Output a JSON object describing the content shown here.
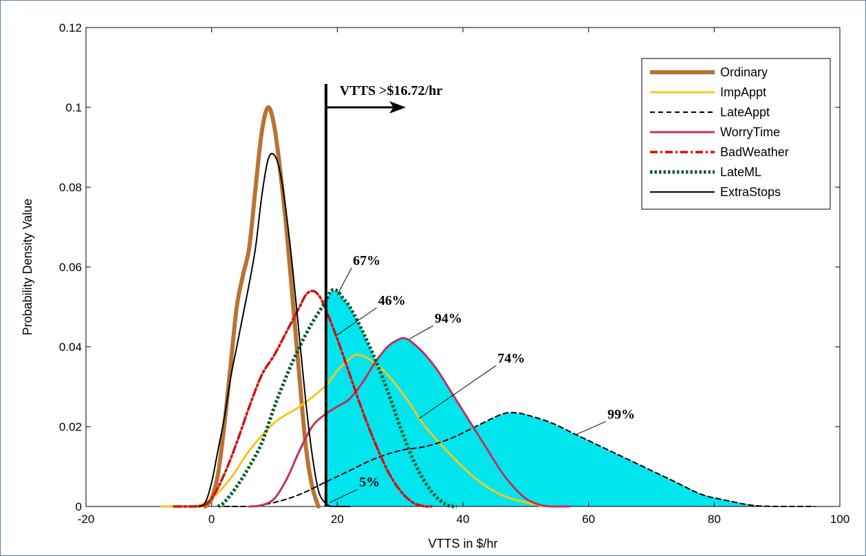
{
  "chart_data": {
    "type": "line",
    "title": "",
    "xlabel": "VTTS in $/hr",
    "ylabel": "Probability Density Value",
    "xlim": [
      -20,
      100
    ],
    "ylim": [
      0,
      0.12
    ],
    "xticks": [
      -20,
      0,
      20,
      40,
      60,
      80,
      100
    ],
    "xtick_labels": [
      "-20",
      "0",
      "20",
      "40",
      "60",
      "80",
      "100"
    ],
    "yticks": [
      0,
      0.02,
      0.04,
      0.06,
      0.08,
      0.1,
      0.12
    ],
    "ytick_labels": [
      "0",
      "0.02",
      "0.04",
      "0.06",
      "0.08",
      "0.1",
      "0.12"
    ],
    "grid": false,
    "legend_position": "top-right",
    "threshold": {
      "x": 18.2,
      "label": "VTTS >$16.72/hr"
    },
    "series": [
      {
        "name": "Ordinary",
        "color": "#b87333",
        "style": "solid-thick",
        "x": [
          -1,
          0,
          1,
          2,
          3,
          4,
          5,
          6,
          7,
          8,
          9,
          10,
          11,
          12,
          13,
          14,
          15,
          16,
          17
        ],
        "y": [
          0,
          0.002,
          0.008,
          0.02,
          0.035,
          0.05,
          0.058,
          0.065,
          0.08,
          0.094,
          0.1,
          0.095,
          0.083,
          0.068,
          0.05,
          0.032,
          0.015,
          0.005,
          0
        ]
      },
      {
        "name": "ImpAppt",
        "color": "#f2c81c",
        "style": "solid",
        "x": [
          -8,
          -3,
          0,
          3,
          6,
          10,
          14,
          18,
          20,
          22,
          23,
          25,
          28,
          31,
          34,
          38,
          42,
          46,
          50,
          53
        ],
        "y": [
          0,
          0,
          0.002,
          0.007,
          0.014,
          0.021,
          0.025,
          0.03,
          0.034,
          0.037,
          0.038,
          0.037,
          0.033,
          0.027,
          0.02,
          0.013,
          0.007,
          0.003,
          0.001,
          0
        ]
      },
      {
        "name": "LateAppt",
        "color": "#000000",
        "style": "dashed",
        "x": [
          2,
          6,
          10,
          14,
          18,
          22,
          26,
          30,
          34,
          38,
          42,
          46,
          48,
          50,
          54,
          58,
          62,
          66,
          70,
          74,
          78,
          82,
          86,
          90,
          96
        ],
        "y": [
          0,
          0,
          0.001,
          0.003,
          0.006,
          0.009,
          0.012,
          0.014,
          0.015,
          0.017,
          0.02,
          0.023,
          0.0235,
          0.023,
          0.021,
          0.018,
          0.015,
          0.012,
          0.009,
          0.006,
          0.003,
          0.0015,
          0.0003,
          0,
          0
        ]
      },
      {
        "name": "WorryTime",
        "color": "#c0305a",
        "style": "solid",
        "x": [
          6,
          8,
          10,
          12,
          14,
          16,
          18,
          20,
          22,
          24,
          26,
          28,
          30,
          31,
          32,
          34,
          36,
          38,
          40,
          42,
          44,
          46,
          48,
          50,
          52,
          54,
          57
        ],
        "y": [
          0,
          0.0003,
          0.002,
          0.007,
          0.014,
          0.02,
          0.023,
          0.025,
          0.027,
          0.031,
          0.036,
          0.04,
          0.042,
          0.042,
          0.041,
          0.038,
          0.034,
          0.029,
          0.024,
          0.019,
          0.014,
          0.009,
          0.005,
          0.002,
          0.0005,
          0,
          0
        ]
      },
      {
        "name": "BadWeather",
        "color": "#d01010",
        "style": "dashdot",
        "x": [
          -6,
          -2,
          0,
          2,
          4,
          6,
          8,
          10,
          12,
          14,
          15,
          16,
          17,
          18,
          20,
          22,
          24,
          26,
          28,
          30,
          32,
          34,
          35
        ],
        "y": [
          0,
          0,
          0.002,
          0.008,
          0.016,
          0.025,
          0.033,
          0.038,
          0.044,
          0.05,
          0.053,
          0.054,
          0.053,
          0.05,
          0.042,
          0.033,
          0.024,
          0.016,
          0.009,
          0.004,
          0.001,
          0,
          0
        ]
      },
      {
        "name": "LateML",
        "color": "#0e5a2c",
        "style": "dotted",
        "x": [
          1,
          2,
          4,
          6,
          8,
          10,
          12,
          14,
          16,
          18,
          19,
          20,
          21,
          22,
          24,
          26,
          28,
          30,
          32,
          34,
          36,
          38,
          39
        ],
        "y": [
          0,
          0.001,
          0.005,
          0.01,
          0.016,
          0.025,
          0.033,
          0.04,
          0.046,
          0.051,
          0.054,
          0.054,
          0.052,
          0.05,
          0.044,
          0.037,
          0.029,
          0.02,
          0.012,
          0.006,
          0.002,
          0,
          0
        ]
      },
      {
        "name": "ExtraStops",
        "color": "#000000",
        "style": "solid-thin",
        "x": [
          -2,
          -1,
          0,
          1,
          2,
          3,
          4,
          5,
          6,
          7,
          8,
          9,
          10,
          11,
          12,
          13,
          14,
          15,
          16,
          17,
          18,
          19,
          20,
          22
        ],
        "y": [
          0,
          0.001,
          0.006,
          0.014,
          0.022,
          0.032,
          0.04,
          0.048,
          0.056,
          0.065,
          0.078,
          0.087,
          0.088,
          0.083,
          0.072,
          0.058,
          0.042,
          0.026,
          0.013,
          0.004,
          0.001,
          0,
          0,
          0
        ]
      }
    ],
    "percent_annotations": [
      {
        "label": "67%",
        "series": "LateML",
        "text_x": 22.5,
        "text_y": 0.0605,
        "target_x": 20,
        "target_y": 0.053
      },
      {
        "label": "46%",
        "series": "BadWeather",
        "text_x": 26.5,
        "text_y": 0.0505,
        "target_x": 20,
        "target_y": 0.043
      },
      {
        "label": "94%",
        "series": "WorryTime",
        "text_x": 35.5,
        "text_y": 0.046,
        "target_x": 31.5,
        "target_y": 0.042
      },
      {
        "label": "74%",
        "series": "ImpAppt",
        "text_x": 45.5,
        "text_y": 0.036,
        "target_x": 33,
        "target_y": 0.022
      },
      {
        "label": "99%",
        "series": "LateAppt",
        "text_x": 63,
        "text_y": 0.022,
        "target_x": 58,
        "target_y": 0.018
      },
      {
        "label": "5%",
        "series": "ExtraStops",
        "text_x": 23.5,
        "text_y": 0.005,
        "target_x": 18.8,
        "target_y": 0.001
      }
    ]
  }
}
